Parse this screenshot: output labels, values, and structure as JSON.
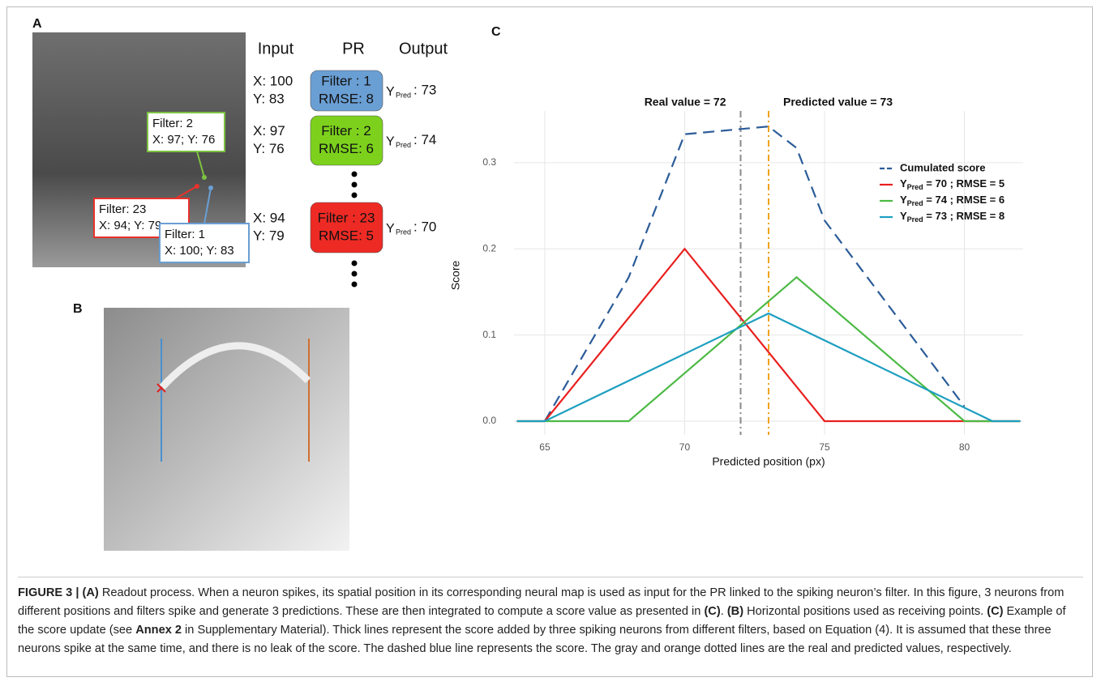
{
  "panel_a": {
    "label": "A",
    "headers": [
      "Input",
      "PR",
      "Output"
    ],
    "callouts": [
      {
        "lines": [
          "Filter: 2",
          "X: 97; Y: 76"
        ],
        "color": "#7dc142"
      },
      {
        "lines": [
          "Filter: 23",
          "X: 94; Y: 79"
        ],
        "color": "#e8322b"
      },
      {
        "lines": [
          "Filter: 1",
          "X: 100; Y: 83"
        ],
        "color": "#6a9fd4"
      }
    ],
    "rows": [
      {
        "input": [
          "X: 100",
          "Y: 83"
        ],
        "pr": [
          "Filter : 1",
          "RMSE: 8"
        ],
        "color": "#6a9fd4",
        "output": [
          "Y",
          "Pred",
          ": 73"
        ]
      },
      {
        "input": [
          "X: 97",
          "Y: 76"
        ],
        "pr": [
          "Filter : 2",
          "RMSE: 6"
        ],
        "color": "#7dd11d",
        "output": [
          "Y",
          "Pred",
          ": 74"
        ]
      },
      {
        "input": [
          "X: 94",
          "Y: 79"
        ],
        "pr": [
          "Filter : 23",
          "RMSE: 5"
        ],
        "color": "#ee2a24",
        "output": [
          "Y",
          "Pred",
          ": 70"
        ]
      }
    ]
  },
  "panel_b": {
    "label": "B"
  },
  "chart_data": {
    "type": "line",
    "label": "C",
    "x_label": "Predicted position (px)",
    "y_label": "Score",
    "xlim": [
      63.9,
      82.1
    ],
    "ylim": [
      -0.016,
      0.36
    ],
    "xticks": [
      65,
      70,
      75,
      80
    ],
    "yticks": [
      {
        "value": 0,
        "label": "0.0"
      },
      0.1,
      0.2,
      0.3
    ],
    "grid": true,
    "series": [
      {
        "name": "Cumulated score",
        "color": "#2b5c99",
        "dash": "dashed",
        "x": [
          65,
          68,
          70,
          73,
          74,
          75,
          80
        ],
        "values": [
          0,
          0.167,
          0.333,
          0.342,
          0.317,
          0.233,
          0.017
        ]
      },
      {
        "name": "YPred = 70 ; RMSE = 5",
        "color": "#e8201f",
        "dash": "solid",
        "x": [
          64,
          65,
          70,
          75,
          82
        ],
        "values": [
          0,
          0,
          0.2,
          0,
          0
        ]
      },
      {
        "name": "YPred = 74 ; RMSE = 6",
        "color": "#4cba45",
        "dash": "solid",
        "x": [
          64,
          68,
          74,
          80,
          82
        ],
        "values": [
          0,
          0,
          0.167,
          0,
          0
        ]
      },
      {
        "name": "YPred = 73 ; RMSE = 8",
        "color": "#1e9fc0",
        "dash": "solid",
        "x": [
          64,
          65,
          73,
          81,
          82
        ],
        "values": [
          0,
          0,
          0.125,
          0,
          0
        ]
      }
    ],
    "vlines": [
      {
        "x": 72,
        "label": "Real value = 72",
        "color": "#8a8a8a"
      },
      {
        "x": 73,
        "label": "Predicted value = 73",
        "color": "#f0a21a"
      }
    ]
  },
  "caption": [
    {
      "text": "FIGURE 3 | ",
      "bold": true
    },
    {
      "text": "(A)",
      "bold": true
    },
    {
      "text": " Readout process. When a neuron spikes, its spatial position in its corresponding neural map is used as input for the PR linked to the spiking neuron’s filter. In this figure, 3 neurons from different positions and filters spike and generate 3 predictions. These are then integrated to compute a score value as presented in ",
      "bold": false
    },
    {
      "text": "(C)",
      "bold": true
    },
    {
      "text": ". ",
      "bold": false
    },
    {
      "text": "(B)",
      "bold": true
    },
    {
      "text": " Horizontal positions used as receiving points. ",
      "bold": false
    },
    {
      "text": "(C)",
      "bold": true
    },
    {
      "text": " Example of the score update (see ",
      "bold": false
    },
    {
      "text": "Annex 2",
      "bold": true
    },
    {
      "text": " in Supplementary Material). Thick lines represent the score added by three spiking neurons from different filters, based on Equation (4). It is assumed that these three neurons spike at the same time, and there is no leak of the score. The dashed blue line represents the score. The gray and orange dotted lines are the real and predicted values, respectively.",
      "bold": false
    }
  ]
}
